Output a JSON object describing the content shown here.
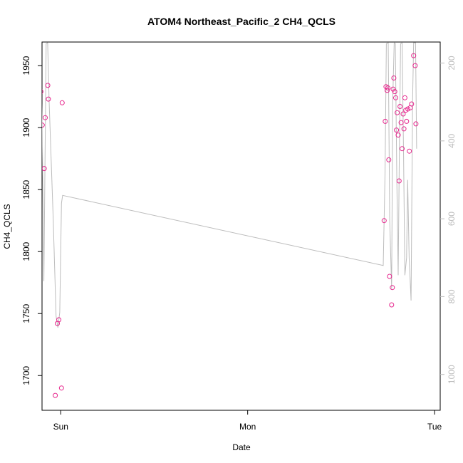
{
  "chart_data": {
    "type": "scatter",
    "title": "ATOM4 Northeast_Pacific_2 CH4_QCLS",
    "xlabel": "Date",
    "ylabel": "CH4_QCLS",
    "x_unit": "day (Sun = 0, Mon = 1, Tue = 2)",
    "xlim": [
      -0.1,
      2.03
    ],
    "ylim": [
      1672,
      1969
    ],
    "x_ticks": [
      {
        "label": "Sun",
        "value": 0
      },
      {
        "label": "Mon",
        "value": 1
      },
      {
        "label": "Tue",
        "value": 2
      }
    ],
    "y_ticks": [
      1700,
      1750,
      1800,
      1850,
      1900,
      1950
    ],
    "y2_ticks": [
      200,
      400,
      600,
      800,
      1000
    ],
    "y2_lim": [
      1092,
      146
    ],
    "y2_reversed": true,
    "colors": {
      "points": "#e6258c",
      "line": "#bdbdbd",
      "axis": "#000000",
      "right_axis": "#bdbdbd"
    },
    "series": [
      {
        "role": "CH4_QCLS measurements",
        "marker": "open-circle",
        "points": [
          [
            -0.106,
            1929
          ],
          [
            -0.099,
            1902
          ],
          [
            -0.088,
            1867
          ],
          [
            -0.083,
            1908
          ],
          [
            -0.069,
            1934
          ],
          [
            -0.066,
            1923
          ],
          [
            -0.029,
            1684
          ],
          [
            -0.018,
            1742
          ],
          [
            -0.01,
            1745
          ],
          [
            0.004,
            1690
          ],
          [
            0.008,
            1920
          ],
          [
            1.73,
            1825
          ],
          [
            1.736,
            1905
          ],
          [
            1.74,
            1933
          ],
          [
            1.746,
            1930
          ],
          [
            1.75,
            1932
          ],
          [
            1.755,
            1874
          ],
          [
            1.759,
            1780
          ],
          [
            1.77,
            1757
          ],
          [
            1.774,
            1771
          ],
          [
            1.778,
            1931
          ],
          [
            1.782,
            1940
          ],
          [
            1.787,
            1929
          ],
          [
            1.792,
            1924
          ],
          [
            1.796,
            1898
          ],
          [
            1.8,
            1912
          ],
          [
            1.805,
            1894
          ],
          [
            1.81,
            1857
          ],
          [
            1.815,
            1917
          ],
          [
            1.821,
            1904
          ],
          [
            1.826,
            1883
          ],
          [
            1.832,
            1911
          ],
          [
            1.836,
            1899
          ],
          [
            1.841,
            1924
          ],
          [
            1.846,
            1914
          ],
          [
            1.85,
            1905
          ],
          [
            1.857,
            1915
          ],
          [
            1.865,
            1881
          ],
          [
            1.87,
            1916
          ],
          [
            1.877,
            1919
          ],
          [
            1.888,
            1958
          ],
          [
            1.896,
            1950
          ],
          [
            1.9,
            1903
          ]
        ]
      },
      {
        "role": "altitude trace (right axis)",
        "marker": "line",
        "points": [
          [
            -0.108,
            148
          ],
          [
            -0.099,
            380
          ],
          [
            -0.09,
            760
          ],
          [
            -0.084,
            450
          ],
          [
            -0.078,
            150
          ],
          [
            -0.07,
            148
          ],
          [
            -0.062,
            300
          ],
          [
            -0.04,
            600
          ],
          [
            -0.025,
            850
          ],
          [
            -0.015,
            880
          ],
          [
            -0.005,
            840
          ],
          [
            0.004,
            560
          ],
          [
            0.01,
            540
          ],
          [
            1.725,
            720
          ],
          [
            1.735,
            480
          ],
          [
            1.742,
            150
          ],
          [
            1.752,
            148
          ],
          [
            1.76,
            600
          ],
          [
            1.77,
            780
          ],
          [
            1.776,
            300
          ],
          [
            1.784,
            148
          ],
          [
            1.79,
            150
          ],
          [
            1.798,
            500
          ],
          [
            1.805,
            745
          ],
          [
            1.812,
            400
          ],
          [
            1.818,
            150
          ],
          [
            1.826,
            148
          ],
          [
            1.834,
            440
          ],
          [
            1.841,
            745
          ],
          [
            1.85,
            700
          ],
          [
            1.856,
            500
          ],
          [
            1.864,
            700
          ],
          [
            1.874,
            810
          ],
          [
            1.882,
            300
          ],
          [
            1.888,
            148
          ],
          [
            1.898,
            148
          ],
          [
            1.904,
            420
          ]
        ]
      }
    ]
  }
}
